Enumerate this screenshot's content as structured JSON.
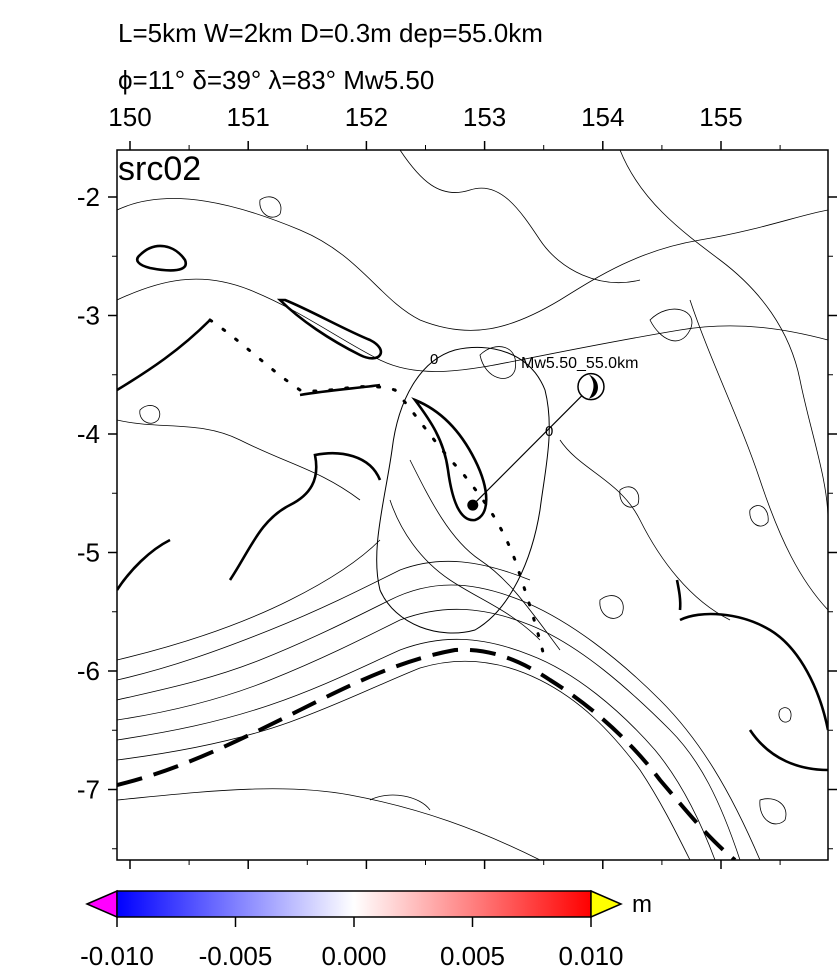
{
  "header": {
    "line1": "L=5km W=2km D=0.3m dep=55.0km",
    "line2": "ϕ=11° δ=39° λ=83° Mw5.50"
  },
  "panel_label": "src02",
  "map": {
    "x_ticks": [
      {
        "label": "150",
        "value": 150
      },
      {
        "label": "151",
        "value": 151
      },
      {
        "label": "152",
        "value": 152
      },
      {
        "label": "153",
        "value": 153
      },
      {
        "label": "154",
        "value": 154
      },
      {
        "label": "155",
        "value": 155
      }
    ],
    "y_ticks": [
      {
        "label": "-2",
        "value": -2
      },
      {
        "label": "-3",
        "value": -3
      },
      {
        "label": "-4",
        "value": -4
      },
      {
        "label": "-5",
        "value": -5
      },
      {
        "label": "-6",
        "value": -6
      },
      {
        "label": "-7",
        "value": -7
      }
    ],
    "contour_labels": [
      "0",
      "0"
    ],
    "source_label": "Mw5.50_55.0km",
    "epicenter": {
      "lon": 152.9,
      "lat": -4.6
    },
    "beachball_lon_lat": [
      153.9,
      -3.6
    ]
  },
  "colorbar": {
    "unit": "m",
    "ticks": [
      "-0.010",
      "-0.005",
      "0.000",
      "0.005",
      "0.010"
    ],
    "min": -0.01,
    "max": 0.01,
    "colors": {
      "low": "#0000ff",
      "mid": "#ffffff",
      "high": "#ff0000",
      "under": "#ff00ff",
      "over": "#ffff00"
    }
  }
}
